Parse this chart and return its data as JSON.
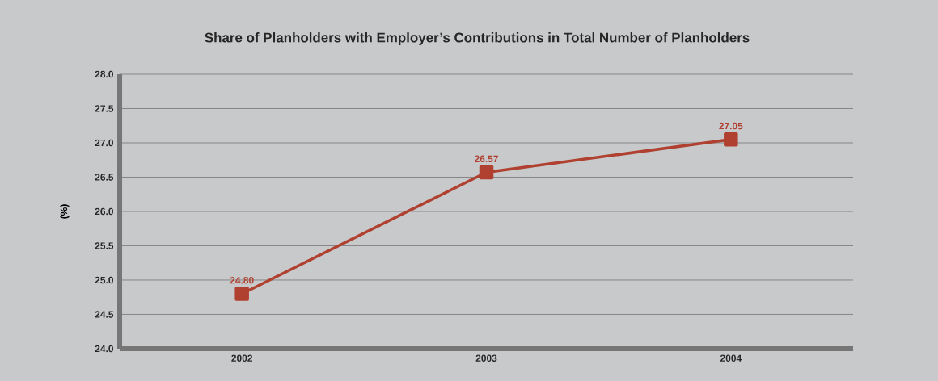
{
  "chart_data": {
    "type": "line",
    "title": "Share of Planholders with Employer’s Contributions in Total Number of Planholders",
    "ylabel": "(%)",
    "categories": [
      "2002",
      "2003",
      "2004"
    ],
    "values": [
      24.8,
      26.57,
      27.05
    ],
    "value_labels": [
      "24.80",
      "26.57",
      "27.05"
    ],
    "color": "#b0402f",
    "marker": "square",
    "grid": "y",
    "ylim": [
      24,
      28
    ],
    "yticks": [
      {
        "value": 24,
        "label": "24.0"
      },
      {
        "value": 24.5,
        "label": "24.5"
      },
      {
        "value": 25,
        "label": "25.0"
      },
      {
        "value": 25.5,
        "label": "25.5"
      },
      {
        "value": 26,
        "label": "26.0"
      },
      {
        "value": 26.5,
        "label": "26.5"
      },
      {
        "value": 27,
        "label": "27.0"
      },
      {
        "value": 27.5,
        "label": "27.5"
      },
      {
        "value": 28,
        "label": "28.0"
      }
    ]
  }
}
